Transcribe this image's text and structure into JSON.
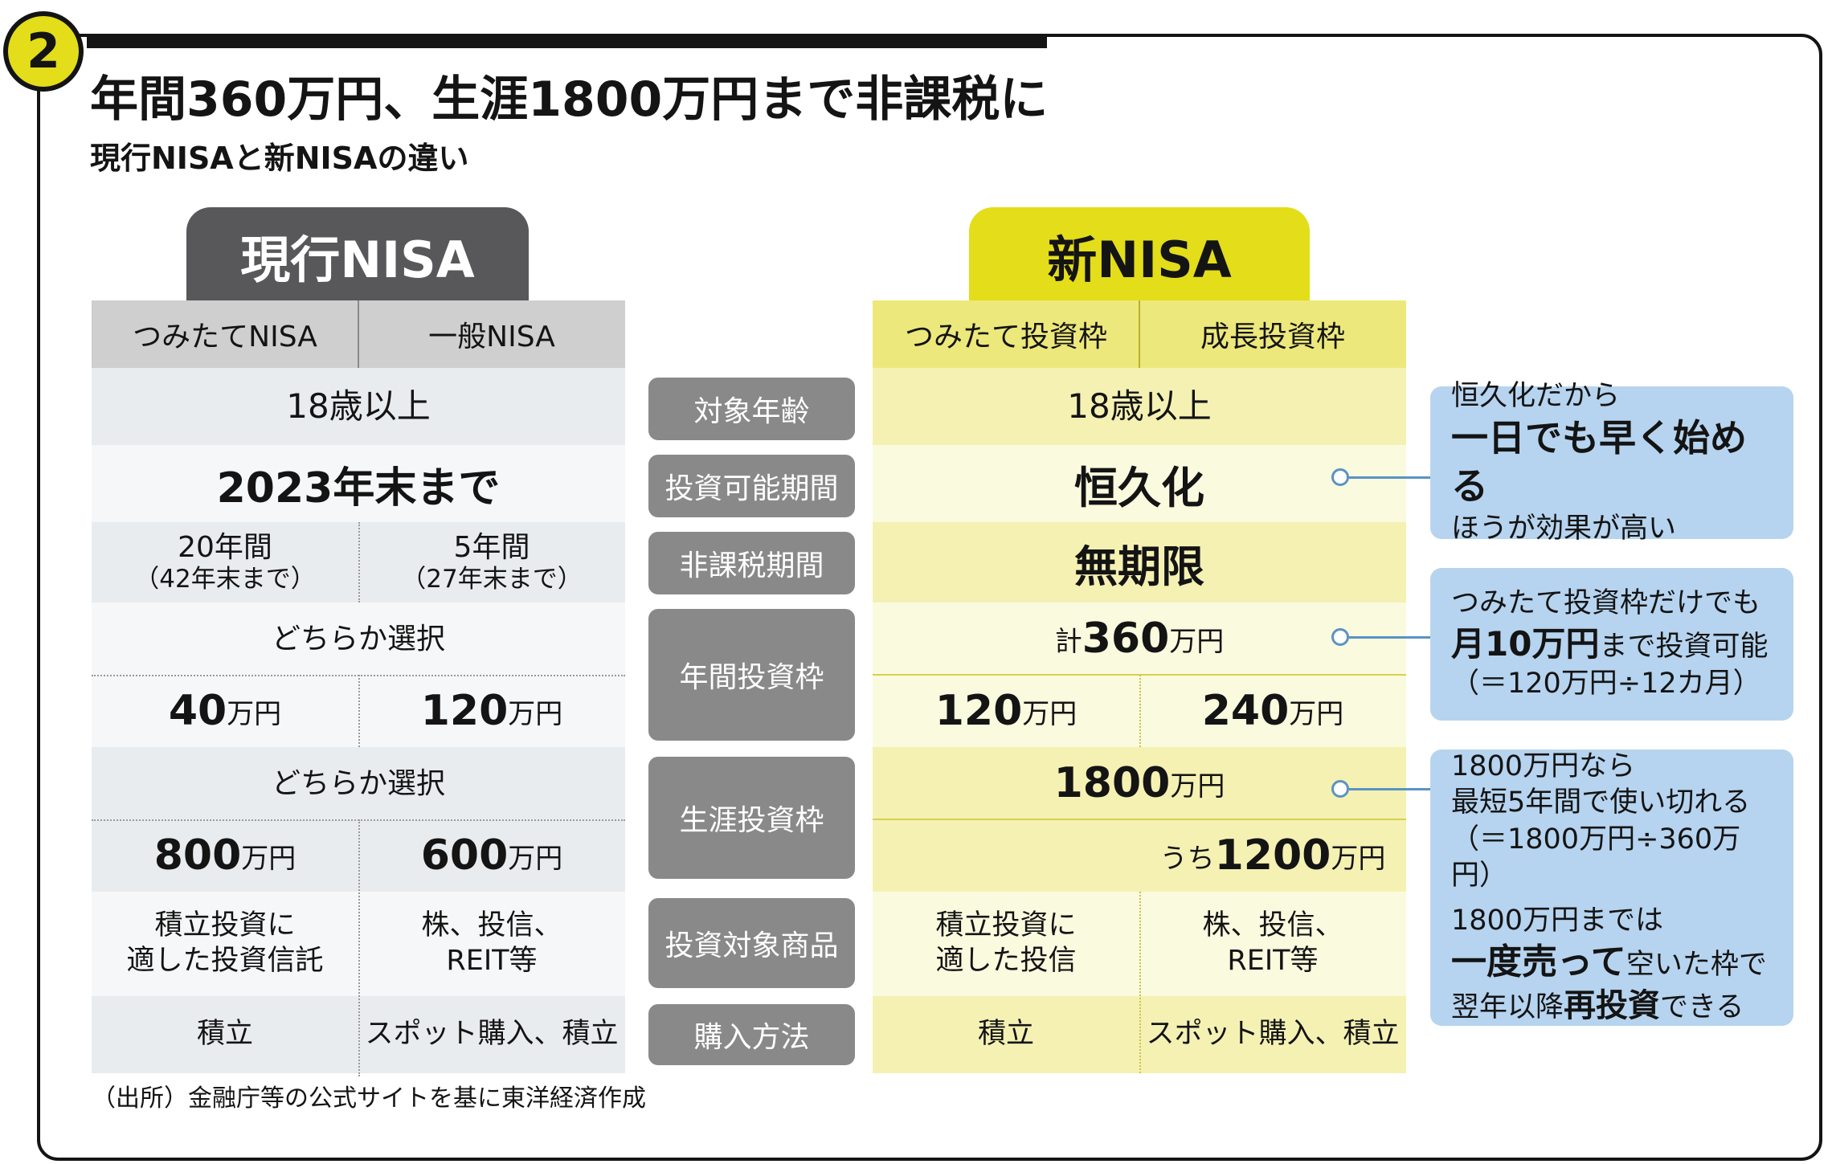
{
  "badge_number": "2",
  "title": "年間360万円、生涯1800万円まで非課税に",
  "subtitle": "現行NISAと新NISAの違い",
  "current": {
    "tab": "現行NISA",
    "col1": "つみたてNISA",
    "col2": "一般NISA",
    "age": "18歳以上",
    "period": "2023年末まで",
    "tax1_line1": "20年間",
    "tax1_line2": "（42年末まで）",
    "tax2_line1": "5年間",
    "tax2_line2": "（27年末まで）",
    "annual_choice": "どちらか選択",
    "annual1_num": "40",
    "annual2_num": "120",
    "life_choice": "どちらか選択",
    "life1_num": "800",
    "life2_num": "600",
    "prod1_line1": "積立投資に",
    "prod1_line2": "適した投資信託",
    "prod2_line1": "株、投信、",
    "prod2_line2": "REIT等",
    "buy1": "積立",
    "buy2": "スポット購入、積立"
  },
  "labels": {
    "age": "対象年齢",
    "period": "投資可能期間",
    "tax": "非課税期間",
    "annual": "年間投資枠",
    "life": "生涯投資枠",
    "products": "投資対象商品",
    "buy": "購入方法"
  },
  "new": {
    "tab": "新NISA",
    "col1": "つみたて投資枠",
    "col2": "成長投資枠",
    "age": "18歳以上",
    "period": "恒久化",
    "tax": "無期限",
    "annual_prefix": "計",
    "annual_total_num": "360",
    "annual1_num": "120",
    "annual2_num": "240",
    "life_total_num": "1800",
    "life_sub_prefix": "うち",
    "life_sub_num": "1200",
    "prod1_line1": "積立投資に",
    "prod1_line2": "適した投信",
    "prod2_line1": "株、投信、",
    "prod2_line2": "REIT等",
    "buy1": "積立",
    "buy2": "スポット購入、積立"
  },
  "unit": "万円",
  "callouts": {
    "c1_line1": "恒久化だから",
    "c1_line2": "一日でも早く始める",
    "c1_line3": "ほうが効果が高い",
    "c2_line1": "つみたて投資枠だけでも",
    "c2_bold": "月10万円",
    "c2_rest": "まで投資可能",
    "c2_line3": "（＝120万円÷12カ月）",
    "c3_line1": "1800万円なら",
    "c3_line2": "最短5年間で使い切れる",
    "c3_line3": "（＝1800万円÷360万円）",
    "c3_line4": "1800万円までは",
    "c3_bold": "一度売って",
    "c3_rest": "空いた枠で",
    "c3_pre": "翌年以降",
    "c3_bold2": "再投資",
    "c3_post": "できる"
  },
  "source": "（出所）金融庁等の公式サイトを基に東洋経済作成",
  "colors": {
    "accent_yellow": "#e3dd1a",
    "current_tab": "#58585a",
    "label_gray": "#898989",
    "callout_blue": "#b6d4ef"
  }
}
